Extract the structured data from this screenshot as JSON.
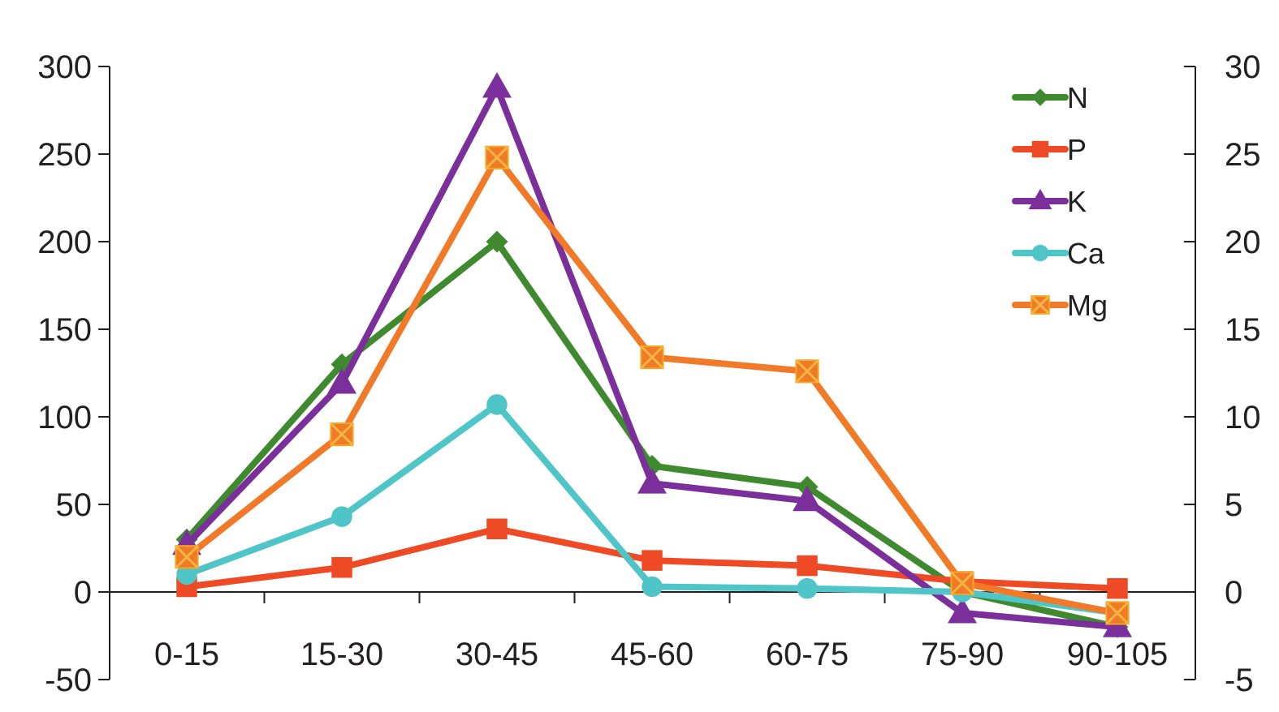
{
  "chart_data": {
    "type": "line",
    "title": "",
    "xlabel": "",
    "ylabel": "",
    "categories": [
      "0-15",
      "15-30",
      "30-45",
      "45-60",
      "60-75",
      "75-90",
      "90-105"
    ],
    "ylim": [
      -50,
      300
    ],
    "y_ticks": [
      "300",
      "250",
      "200",
      "150",
      "100",
      "50",
      "0",
      "-50"
    ],
    "y2lim": [
      -5,
      30
    ],
    "y2_ticks": [
      "30",
      "25",
      "20",
      "15",
      "10",
      "5",
      "0",
      "-5"
    ],
    "grid": false,
    "legend_position": "top-right",
    "series": [
      {
        "name": "N",
        "color": "#3f8a2f",
        "marker": "diamond",
        "values": [
          30,
          130,
          200,
          72,
          60,
          0,
          -20
        ]
      },
      {
        "name": "P",
        "color": "#ee4a25",
        "marker": "square",
        "values": [
          3,
          14,
          36,
          18,
          15,
          6,
          2
        ]
      },
      {
        "name": "K",
        "color": "#7b2f9a",
        "marker": "triangle",
        "values": [
          27,
          119,
          288,
          62,
          52,
          -12,
          -20
        ]
      },
      {
        "name": "Ca",
        "color": "#4fc5c8",
        "marker": "circle",
        "values": [
          10,
          43,
          107,
          3,
          2,
          0,
          -12
        ]
      },
      {
        "name": "Mg",
        "color": "#f07a28",
        "marker": "x-square",
        "values": [
          20,
          90,
          248,
          134,
          126,
          5,
          -12
        ]
      }
    ]
  }
}
